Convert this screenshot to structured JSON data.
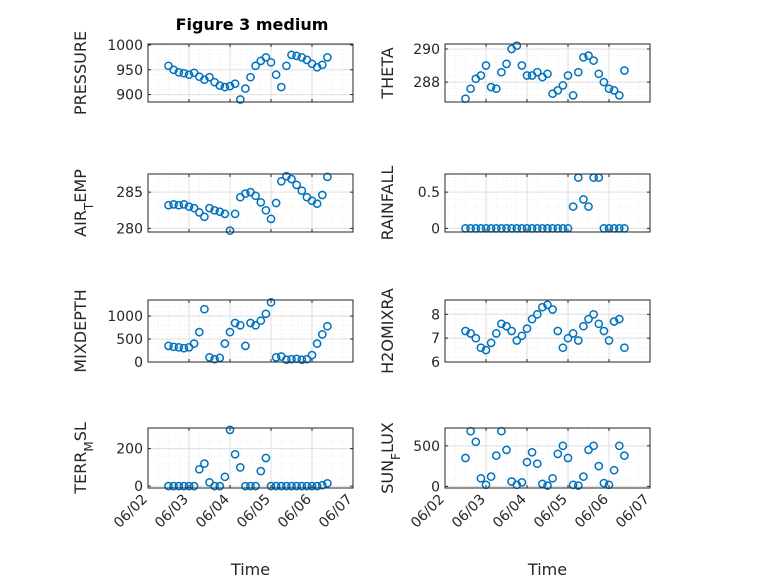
{
  "figure": {
    "title": "Figure 3 medium"
  },
  "colors": {
    "marker": "#0072BD",
    "axis": "#262626",
    "grid": "#dfdfdf",
    "minor_grid": "#ececec"
  },
  "chart_data": [
    {
      "id": "pressure",
      "type": "scatter",
      "ylabel": "PRESSURE",
      "title": "Figure 3 medium",
      "ylim": [
        885,
        1002
      ],
      "yticks": [
        900,
        950,
        1000
      ],
      "xlim": [
        "06/02",
        "06/07"
      ],
      "xtick_labels": [
        "06/02",
        "06/03",
        "06/04",
        "06/05",
        "06/06",
        "06/07"
      ],
      "xlabel": "",
      "grid": true,
      "minor_grid": true,
      "x": [
        "2022-06-02T12:00",
        "2022-06-02T15:00",
        "2022-06-02T18:00",
        "2022-06-02T21:00",
        "2022-06-03T00:00",
        "2022-06-03T03:00",
        "2022-06-03T06:00",
        "2022-06-03T09:00",
        "2022-06-03T12:00",
        "2022-06-03T15:00",
        "2022-06-03T18:00",
        "2022-06-03T21:00",
        "2022-06-04T00:00",
        "2022-06-04T03:00",
        "2022-06-04T06:00",
        "2022-06-04T09:00",
        "2022-06-04T12:00",
        "2022-06-04T15:00",
        "2022-06-04T18:00",
        "2022-06-04T21:00",
        "2022-06-05T00:00",
        "2022-06-05T03:00",
        "2022-06-05T06:00",
        "2022-06-05T09:00",
        "2022-06-05T12:00",
        "2022-06-05T15:00",
        "2022-06-05T18:00",
        "2022-06-05T21:00",
        "2022-06-06T00:00",
        "2022-06-06T03:00",
        "2022-06-06T06:00",
        "2022-06-06T09:00"
      ],
      "values": [
        958,
        950,
        945,
        943,
        940,
        944,
        936,
        930,
        935,
        925,
        918,
        915,
        917,
        922,
        890,
        912,
        935,
        958,
        968,
        975,
        965,
        940,
        915,
        958,
        980,
        978,
        975,
        970,
        962,
        955,
        960,
        975
      ]
    },
    {
      "id": "theta",
      "type": "scatter",
      "ylabel": "THETA",
      "ylim": [
        286.8,
        290.3
      ],
      "yticks": [
        288,
        290
      ],
      "xlim": [
        "06/02",
        "06/07"
      ],
      "xtick_labels": [
        "06/02",
        "06/03",
        "06/04",
        "06/05",
        "06/06",
        "06/07"
      ],
      "xlabel": "",
      "grid": true,
      "minor_grid": true,
      "x": [
        "2022-06-02T12:00",
        "2022-06-02T15:00",
        "2022-06-02T18:00",
        "2022-06-02T21:00",
        "2022-06-03T00:00",
        "2022-06-03T03:00",
        "2022-06-03T06:00",
        "2022-06-03T09:00",
        "2022-06-03T12:00",
        "2022-06-03T15:00",
        "2022-06-03T18:00",
        "2022-06-03T21:00",
        "2022-06-04T00:00",
        "2022-06-04T03:00",
        "2022-06-04T06:00",
        "2022-06-04T09:00",
        "2022-06-04T12:00",
        "2022-06-04T15:00",
        "2022-06-04T18:00",
        "2022-06-04T21:00",
        "2022-06-05T00:00",
        "2022-06-05T03:00",
        "2022-06-05T06:00",
        "2022-06-05T09:00",
        "2022-06-05T12:00",
        "2022-06-05T15:00",
        "2022-06-05T18:00",
        "2022-06-05T21:00",
        "2022-06-06T00:00",
        "2022-06-06T03:00",
        "2022-06-06T06:00",
        "2022-06-06T09:00"
      ],
      "values": [
        287.0,
        287.6,
        288.2,
        288.4,
        289.0,
        287.7,
        287.6,
        288.6,
        289.1,
        290.0,
        290.2,
        289.0,
        288.4,
        288.4,
        288.6,
        288.3,
        288.5,
        287.3,
        287.5,
        287.8,
        288.4,
        287.2,
        288.6,
        289.5,
        289.6,
        289.3,
        288.5,
        288.0,
        287.6,
        287.5,
        287.2,
        288.7
      ]
    },
    {
      "id": "air_temp",
      "type": "scatter",
      "ylabel": "AIR_TEMP",
      "ylabel_parts": [
        "AIR",
        "T",
        "EMP"
      ],
      "ylim": [
        279.5,
        287.5
      ],
      "yticks": [
        280,
        285
      ],
      "xlim": [
        "06/02",
        "06/07"
      ],
      "xtick_labels": [
        "06/02",
        "06/03",
        "06/04",
        "06/05",
        "06/06",
        "06/07"
      ],
      "xlabel": "",
      "grid": true,
      "minor_grid": true,
      "x": [
        "2022-06-02T12:00",
        "2022-06-02T15:00",
        "2022-06-02T18:00",
        "2022-06-02T21:00",
        "2022-06-03T00:00",
        "2022-06-03T03:00",
        "2022-06-03T06:00",
        "2022-06-03T09:00",
        "2022-06-03T12:00",
        "2022-06-03T15:00",
        "2022-06-03T18:00",
        "2022-06-03T21:00",
        "2022-06-04T00:00",
        "2022-06-04T03:00",
        "2022-06-04T06:00",
        "2022-06-04T09:00",
        "2022-06-04T12:00",
        "2022-06-04T15:00",
        "2022-06-04T18:00",
        "2022-06-04T21:00",
        "2022-06-05T00:00",
        "2022-06-05T03:00",
        "2022-06-05T06:00",
        "2022-06-05T09:00",
        "2022-06-05T12:00",
        "2022-06-05T15:00",
        "2022-06-05T18:00",
        "2022-06-05T21:00",
        "2022-06-06T00:00",
        "2022-06-06T03:00",
        "2022-06-06T06:00",
        "2022-06-06T09:00"
      ],
      "values": [
        283.2,
        283.3,
        283.2,
        283.3,
        283.0,
        282.8,
        282.2,
        281.6,
        282.8,
        282.5,
        282.3,
        282.0,
        279.7,
        282.0,
        284.3,
        284.8,
        285.0,
        284.5,
        283.6,
        282.5,
        281.3,
        283.5,
        286.5,
        287.2,
        286.8,
        286.0,
        285.2,
        284.3,
        283.8,
        283.4,
        284.6,
        287.1
      ]
    },
    {
      "id": "rainfall",
      "type": "scatter",
      "ylabel": "RAINFALL",
      "ylim": [
        -0.05,
        0.75
      ],
      "yticks": [
        0,
        0.5
      ],
      "xlim": [
        "06/02",
        "06/07"
      ],
      "xtick_labels": [
        "06/02",
        "06/03",
        "06/04",
        "06/05",
        "06/06",
        "06/07"
      ],
      "xlabel": "",
      "grid": true,
      "minor_grid": true,
      "x": [
        "2022-06-02T12:00",
        "2022-06-02T15:00",
        "2022-06-02T18:00",
        "2022-06-02T21:00",
        "2022-06-03T00:00",
        "2022-06-03T03:00",
        "2022-06-03T06:00",
        "2022-06-03T09:00",
        "2022-06-03T12:00",
        "2022-06-03T15:00",
        "2022-06-03T18:00",
        "2022-06-03T21:00",
        "2022-06-04T00:00",
        "2022-06-04T03:00",
        "2022-06-04T06:00",
        "2022-06-04T09:00",
        "2022-06-04T12:00",
        "2022-06-04T15:00",
        "2022-06-04T18:00",
        "2022-06-04T21:00",
        "2022-06-05T00:00",
        "2022-06-05T03:00",
        "2022-06-05T06:00",
        "2022-06-05T09:00",
        "2022-06-05T12:00",
        "2022-06-05T15:00",
        "2022-06-05T18:00",
        "2022-06-05T21:00",
        "2022-06-06T00:00",
        "2022-06-06T03:00",
        "2022-06-06T06:00",
        "2022-06-06T09:00"
      ],
      "values": [
        0,
        0,
        0,
        0,
        0,
        0,
        0,
        0,
        0,
        0,
        0,
        0,
        0,
        0,
        0,
        0,
        0,
        0,
        0,
        0,
        0,
        0.3,
        0.7,
        0.4,
        0.3,
        0.7,
        0.7,
        0,
        0,
        0,
        0,
        0
      ]
    },
    {
      "id": "mixdepth",
      "type": "scatter",
      "ylabel": "MIXDEPTH",
      "ylim": [
        0,
        1350
      ],
      "yticks": [
        0,
        500,
        1000
      ],
      "xlim": [
        "06/02",
        "06/07"
      ],
      "xtick_labels": [
        "06/02",
        "06/03",
        "06/04",
        "06/05",
        "06/06",
        "06/07"
      ],
      "xlabel": "",
      "grid": true,
      "minor_grid": true,
      "x": [
        "2022-06-02T12:00",
        "2022-06-02T15:00",
        "2022-06-02T18:00",
        "2022-06-02T21:00",
        "2022-06-03T00:00",
        "2022-06-03T03:00",
        "2022-06-03T06:00",
        "2022-06-03T09:00",
        "2022-06-03T12:00",
        "2022-06-03T15:00",
        "2022-06-03T18:00",
        "2022-06-03T21:00",
        "2022-06-04T00:00",
        "2022-06-04T03:00",
        "2022-06-04T06:00",
        "2022-06-04T09:00",
        "2022-06-04T12:00",
        "2022-06-04T15:00",
        "2022-06-04T18:00",
        "2022-06-04T21:00",
        "2022-06-05T00:00",
        "2022-06-05T03:00",
        "2022-06-05T06:00",
        "2022-06-05T09:00",
        "2022-06-05T12:00",
        "2022-06-05T15:00",
        "2022-06-05T18:00",
        "2022-06-05T21:00",
        "2022-06-06T00:00",
        "2022-06-06T03:00",
        "2022-06-06T06:00",
        "2022-06-06T09:00"
      ],
      "values": [
        350,
        330,
        320,
        300,
        320,
        400,
        650,
        1150,
        100,
        60,
        90,
        400,
        650,
        850,
        800,
        350,
        850,
        800,
        900,
        1050,
        1300,
        100,
        120,
        50,
        60,
        70,
        50,
        60,
        150,
        400,
        600,
        780
      ]
    },
    {
      "id": "h2omixra",
      "type": "scatter",
      "ylabel": "H2OMIXRA",
      "ylim": [
        6,
        8.6
      ],
      "yticks": [
        6,
        7,
        8
      ],
      "xlim": [
        "06/02",
        "06/07"
      ],
      "xtick_labels": [
        "06/02",
        "06/03",
        "06/04",
        "06/05",
        "06/06",
        "06/07"
      ],
      "xlabel": "",
      "grid": true,
      "minor_grid": true,
      "x": [
        "2022-06-02T12:00",
        "2022-06-02T15:00",
        "2022-06-02T18:00",
        "2022-06-02T21:00",
        "2022-06-03T00:00",
        "2022-06-03T03:00",
        "2022-06-03T06:00",
        "2022-06-03T09:00",
        "2022-06-03T12:00",
        "2022-06-03T15:00",
        "2022-06-03T18:00",
        "2022-06-03T21:00",
        "2022-06-04T00:00",
        "2022-06-04T03:00",
        "2022-06-04T06:00",
        "2022-06-04T09:00",
        "2022-06-04T12:00",
        "2022-06-04T15:00",
        "2022-06-04T18:00",
        "2022-06-04T21:00",
        "2022-06-05T00:00",
        "2022-06-05T03:00",
        "2022-06-05T06:00",
        "2022-06-05T09:00",
        "2022-06-05T12:00",
        "2022-06-05T15:00",
        "2022-06-05T18:00",
        "2022-06-05T21:00",
        "2022-06-06T00:00",
        "2022-06-06T03:00",
        "2022-06-06T06:00",
        "2022-06-06T09:00"
      ],
      "values": [
        7.3,
        7.2,
        7.0,
        6.6,
        6.5,
        6.8,
        7.2,
        7.6,
        7.5,
        7.3,
        6.9,
        7.1,
        7.4,
        7.8,
        8.0,
        8.3,
        8.4,
        8.2,
        7.3,
        6.6,
        7.0,
        7.2,
        6.9,
        7.5,
        7.8,
        8.0,
        7.6,
        7.3,
        6.9,
        7.7,
        7.8,
        6.6
      ]
    },
    {
      "id": "terr_msl",
      "type": "scatter",
      "ylabel": "TERR_MSL",
      "ylabel_parts": [
        "TERR",
        "M",
        "SL"
      ],
      "ylim": [
        -10,
        310
      ],
      "yticks": [
        0,
        200
      ],
      "xlim": [
        "06/02",
        "06/07"
      ],
      "xtick_labels": [
        "06/02",
        "06/03",
        "06/04",
        "06/05",
        "06/06",
        "06/07"
      ],
      "xlabel": "Time",
      "grid": true,
      "minor_grid": true,
      "x": [
        "2022-06-02T12:00",
        "2022-06-02T15:00",
        "2022-06-02T18:00",
        "2022-06-02T21:00",
        "2022-06-03T00:00",
        "2022-06-03T03:00",
        "2022-06-03T06:00",
        "2022-06-03T09:00",
        "2022-06-03T12:00",
        "2022-06-03T15:00",
        "2022-06-03T18:00",
        "2022-06-03T21:00",
        "2022-06-04T00:00",
        "2022-06-04T03:00",
        "2022-06-04T06:00",
        "2022-06-04T09:00",
        "2022-06-04T12:00",
        "2022-06-04T15:00",
        "2022-06-04T18:00",
        "2022-06-04T21:00",
        "2022-06-05T00:00",
        "2022-06-05T03:00",
        "2022-06-05T06:00",
        "2022-06-05T09:00",
        "2022-06-05T12:00",
        "2022-06-05T15:00",
        "2022-06-05T18:00",
        "2022-06-05T21:00",
        "2022-06-06T00:00",
        "2022-06-06T03:00",
        "2022-06-06T06:00",
        "2022-06-06T09:00"
      ],
      "values": [
        0,
        0,
        0,
        0,
        0,
        0,
        90,
        120,
        20,
        0,
        0,
        50,
        300,
        170,
        100,
        0,
        0,
        0,
        80,
        150,
        0,
        0,
        0,
        0,
        0,
        0,
        0,
        0,
        0,
        0,
        5,
        15
      ]
    },
    {
      "id": "sun_flux",
      "type": "scatter",
      "ylabel": "SUN_FLUX",
      "ylabel_parts": [
        "SUN",
        "F",
        "LUX"
      ],
      "ylim": [
        -20,
        720
      ],
      "yticks": [
        0,
        500
      ],
      "xlim": [
        "06/02",
        "06/07"
      ],
      "xtick_labels": [
        "06/02",
        "06/03",
        "06/04",
        "06/05",
        "06/06",
        "06/07"
      ],
      "xlabel": "Time",
      "grid": true,
      "minor_grid": true,
      "x": [
        "2022-06-02T12:00",
        "2022-06-02T15:00",
        "2022-06-02T18:00",
        "2022-06-02T21:00",
        "2022-06-03T00:00",
        "2022-06-03T03:00",
        "2022-06-03T06:00",
        "2022-06-03T09:00",
        "2022-06-03T12:00",
        "2022-06-03T15:00",
        "2022-06-03T18:00",
        "2022-06-03T21:00",
        "2022-06-04T00:00",
        "2022-06-04T03:00",
        "2022-06-04T06:00",
        "2022-06-04T09:00",
        "2022-06-04T12:00",
        "2022-06-04T15:00",
        "2022-06-04T18:00",
        "2022-06-04T21:00",
        "2022-06-05T00:00",
        "2022-06-05T03:00",
        "2022-06-05T06:00",
        "2022-06-05T09:00",
        "2022-06-05T12:00",
        "2022-06-05T15:00",
        "2022-06-05T18:00",
        "2022-06-05T21:00",
        "2022-06-06T00:00",
        "2022-06-06T03:00",
        "2022-06-06T06:00",
        "2022-06-06T09:00"
      ],
      "values": [
        350,
        680,
        550,
        100,
        20,
        120,
        380,
        680,
        450,
        60,
        20,
        50,
        300,
        420,
        280,
        30,
        10,
        100,
        400,
        500,
        350,
        20,
        10,
        120,
        450,
        500,
        250,
        40,
        20,
        200,
        500,
        380
      ]
    }
  ]
}
